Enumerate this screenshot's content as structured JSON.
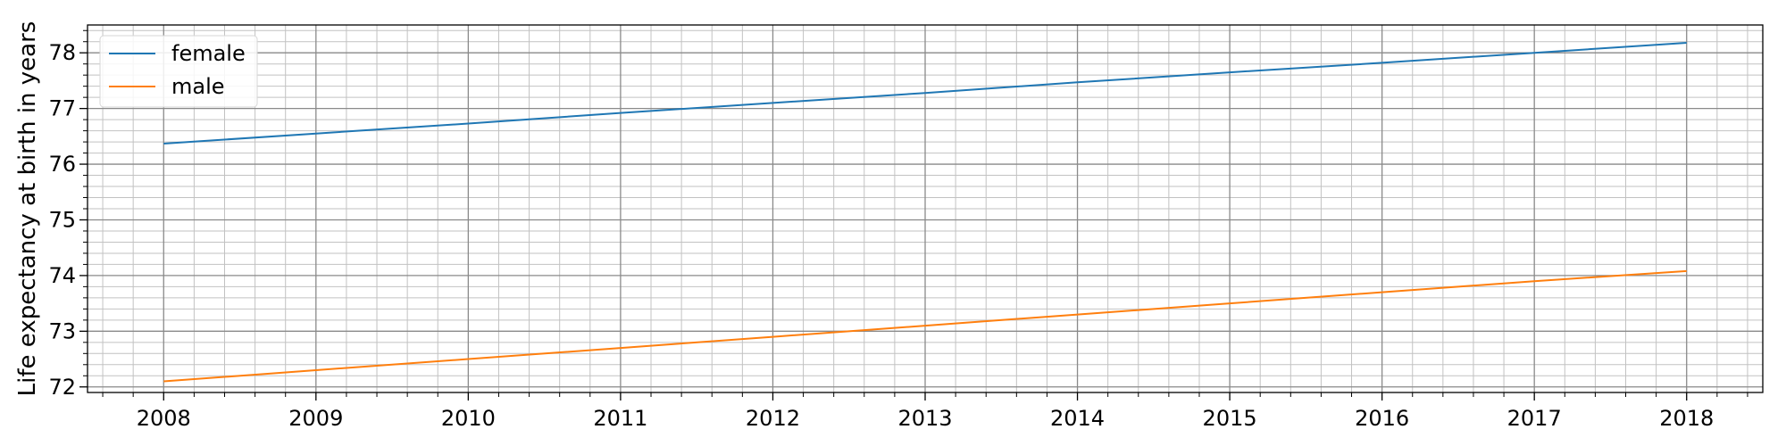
{
  "chart_data": {
    "type": "line",
    "title": "",
    "xlabel": "",
    "ylabel": "Life expectancy at birth in years",
    "xlim": [
      2007.5,
      2018.5
    ],
    "ylim": [
      71.9,
      78.5
    ],
    "x": [
      2008,
      2009,
      2010,
      2011,
      2012,
      2013,
      2014,
      2015,
      2016,
      2017,
      2018
    ],
    "x_ticks": [
      2008,
      2009,
      2010,
      2011,
      2012,
      2013,
      2014,
      2015,
      2016,
      2017,
      2018
    ],
    "y_ticks": [
      72,
      73,
      74,
      75,
      76,
      77,
      78
    ],
    "grid": "major and minor",
    "legend": "top-left",
    "series": [
      {
        "name": "female",
        "color": "#1f77b4",
        "values": [
          76.37,
          76.55,
          76.73,
          76.92,
          77.1,
          77.28,
          77.47,
          77.65,
          77.82,
          78.0,
          78.18
        ]
      },
      {
        "name": "male",
        "color": "#ff7f0e",
        "values": [
          72.1,
          72.3,
          72.5,
          72.7,
          72.9,
          73.1,
          73.3,
          73.5,
          73.7,
          73.9,
          74.08
        ]
      }
    ]
  }
}
